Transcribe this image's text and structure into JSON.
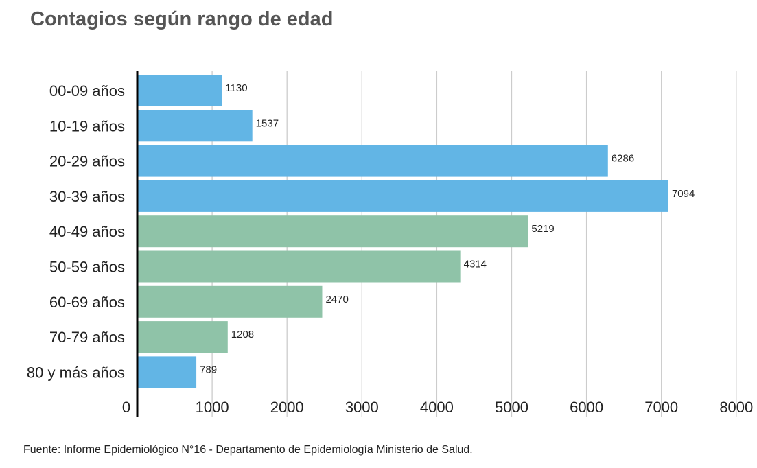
{
  "title": "Contagios según rango de edad",
  "source": "Fuente: Informe Epidemiológico N°16 - Departamento de Epidemiología Ministerio de Salud.",
  "colors": {
    "blue": "#62b5e5",
    "green": "#8fc3a8",
    "grid": "#cccccc",
    "axis": "#000000"
  },
  "chart_data": {
    "type": "bar",
    "orientation": "horizontal",
    "categories": [
      "00-09 años",
      "10-19 años",
      "20-29 años",
      "30-39 años",
      "40-49 años",
      "50-59 años",
      "60-69 años",
      "70-79 años",
      "80 y más años"
    ],
    "values": [
      1130,
      1537,
      6286,
      7094,
      5219,
      4314,
      2470,
      1208,
      789
    ],
    "bar_colors": [
      "blue",
      "blue",
      "blue",
      "blue",
      "green",
      "green",
      "green",
      "green",
      "blue"
    ],
    "xticks": [
      "0",
      "1000",
      "2000",
      "3000",
      "4000",
      "5000",
      "6000",
      "7000",
      "8000"
    ],
    "xlim": [
      0,
      8000
    ],
    "grid": true,
    "xlabel": "",
    "ylabel": ""
  }
}
